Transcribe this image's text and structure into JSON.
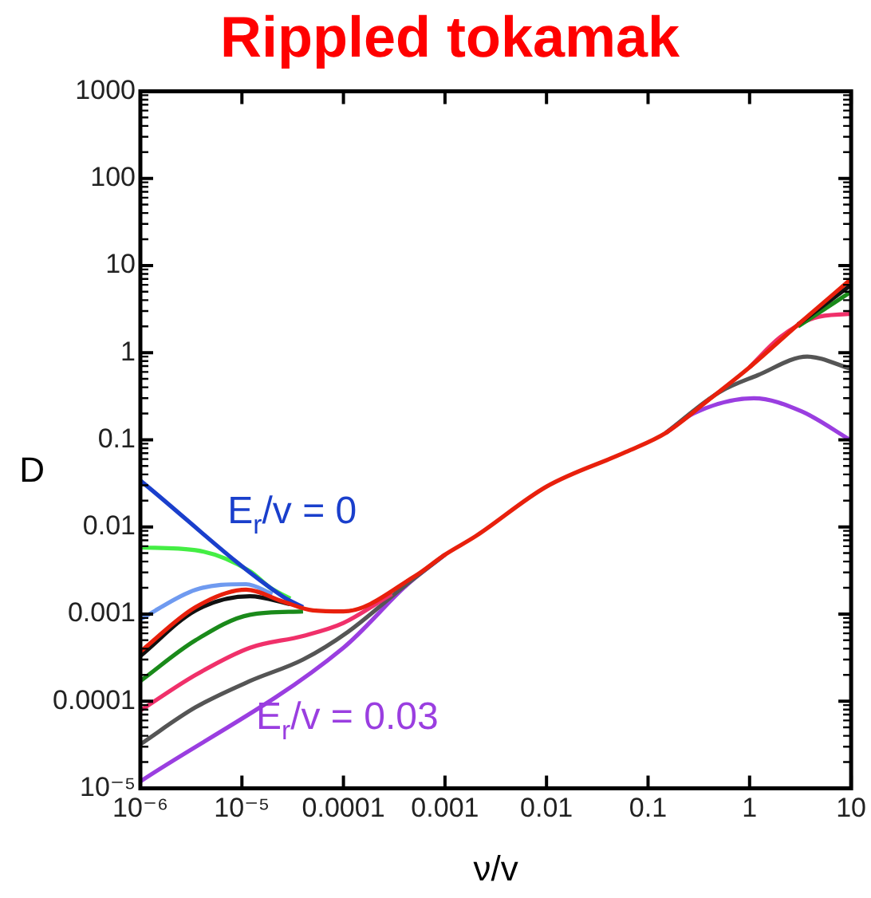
{
  "chart_data": {
    "type": "line",
    "title": "Rippled tokamak",
    "xlabel": "ν/v",
    "ylabel": "D",
    "log": "xy",
    "grid": false,
    "legend": false,
    "marker": "none",
    "line_style": "solid",
    "xlim": [
      1e-06,
      10
    ],
    "ylim": [
      1e-05,
      1000
    ],
    "xticks": [
      {
        "value": 1e-06,
        "label": "10⁻⁶"
      },
      {
        "value": 1e-05,
        "label": "10⁻⁵"
      },
      0.0001,
      0.001,
      0.01,
      0.1,
      1,
      10
    ],
    "yticks": [
      {
        "value": 1e-05,
        "label": "10⁻⁵"
      },
      0.0001,
      0.001,
      0.01,
      0.1,
      1,
      10,
      100,
      1000
    ],
    "annotations": [
      "E$_{r}$/v = 0",
      "E$_{r}$/v = 0.03"
    ],
    "series": [
      {
        "color": "#e8200c",
        "x": [
          1e-06,
          3.5e-06,
          1.1e-05,
          2.5e-05,
          5e-05,
          0.0001,
          0.0005,
          0.001,
          0.002,
          0.01,
          0.06,
          0.15,
          0.4,
          1,
          3,
          10
        ],
        "values": [
          0.00037,
          0.0012,
          0.0019,
          0.0014,
          0.0011,
          0.00107,
          0.0027,
          0.0048,
          0.0078,
          0.029,
          0.072,
          0.12,
          0.29,
          0.68,
          2.1,
          7
        ]
      },
      {
        "color": "#1a3fcc",
        "x": [
          1e-06,
          2.5e-05,
          4e-05
        ],
        "values": [
          0.034,
          0.0016,
          0.0012
        ]
      },
      {
        "color": "#44ee44",
        "x": [
          1e-06,
          3.5e-06,
          1.2e-05,
          1.9e-05,
          3e-05
        ],
        "values": [
          0.0058,
          0.0054,
          0.0031,
          0.002,
          0.0015
        ]
      },
      {
        "color": "#6f9af0",
        "x": [
          1e-06,
          3.5e-06,
          1.1e-05,
          2e-05
        ],
        "values": [
          0.00087,
          0.0019,
          0.0022,
          0.0017
        ]
      },
      {
        "color": "#111111",
        "x": [
          1e-06,
          3.5e-06,
          1.2e-05,
          3e-05,
          4e-05,
          3,
          10
        ],
        "values": [
          0.00033,
          0.0011,
          0.0016,
          0.0013,
          null,
          2.1,
          6
        ]
      },
      {
        "color": "#1a8a1a",
        "x": [
          1e-06,
          3.5e-06,
          1.2e-05,
          4e-05,
          0.0001,
          0.0002,
          3,
          10
        ],
        "values": [
          0.00017,
          0.0005,
          0.00098,
          0.00107,
          null,
          null,
          2.0,
          5
        ]
      },
      {
        "color": "#f0306a",
        "x": [
          1e-06,
          3.5e-06,
          1.2e-05,
          4e-05,
          0.0001,
          0.0003,
          0.0005,
          0.7,
          1,
          2,
          4.3,
          10
        ],
        "values": [
          7.8e-05,
          0.0002,
          0.00041,
          0.00056,
          0.00079,
          0.0017,
          null,
          null,
          0.68,
          1.5,
          2.5,
          2.8
        ]
      },
      {
        "color": "#555555",
        "x": [
          1e-06,
          3.5e-06,
          1.2e-05,
          4e-05,
          0.00011,
          0.0004,
          0.001,
          0.002,
          0.15,
          0.5,
          1.2,
          3.7,
          10
        ],
        "values": [
          3.2e-05,
          8.5e-05,
          0.00017,
          0.0003,
          0.00062,
          0.0021,
          0.0048,
          null,
          0.12,
          0.35,
          0.55,
          0.9,
          0.65
        ]
      },
      {
        "color": "#9a3ee0",
        "x": [
          1e-06,
          0.0001,
          0.00043,
          0.001,
          0.002,
          0.15,
          0.28,
          1.1,
          3.3,
          10
        ],
        "values": [
          1.2e-05,
          0.00041,
          0.0022,
          0.0048,
          null,
          0.12,
          0.2,
          0.3,
          0.21,
          0.098
        ]
      }
    ]
  }
}
